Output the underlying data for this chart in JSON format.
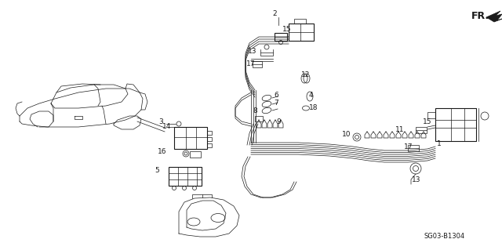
{
  "bg_color": "#ffffff",
  "fig_width": 6.4,
  "fig_height": 3.19,
  "dpi": 100,
  "diagram_code": "SG03-B1304",
  "fr_label": "FR.",
  "line_color": "#1a1a1a",
  "label_fontsize": 6.5,
  "diagram_code_fontsize": 6
}
